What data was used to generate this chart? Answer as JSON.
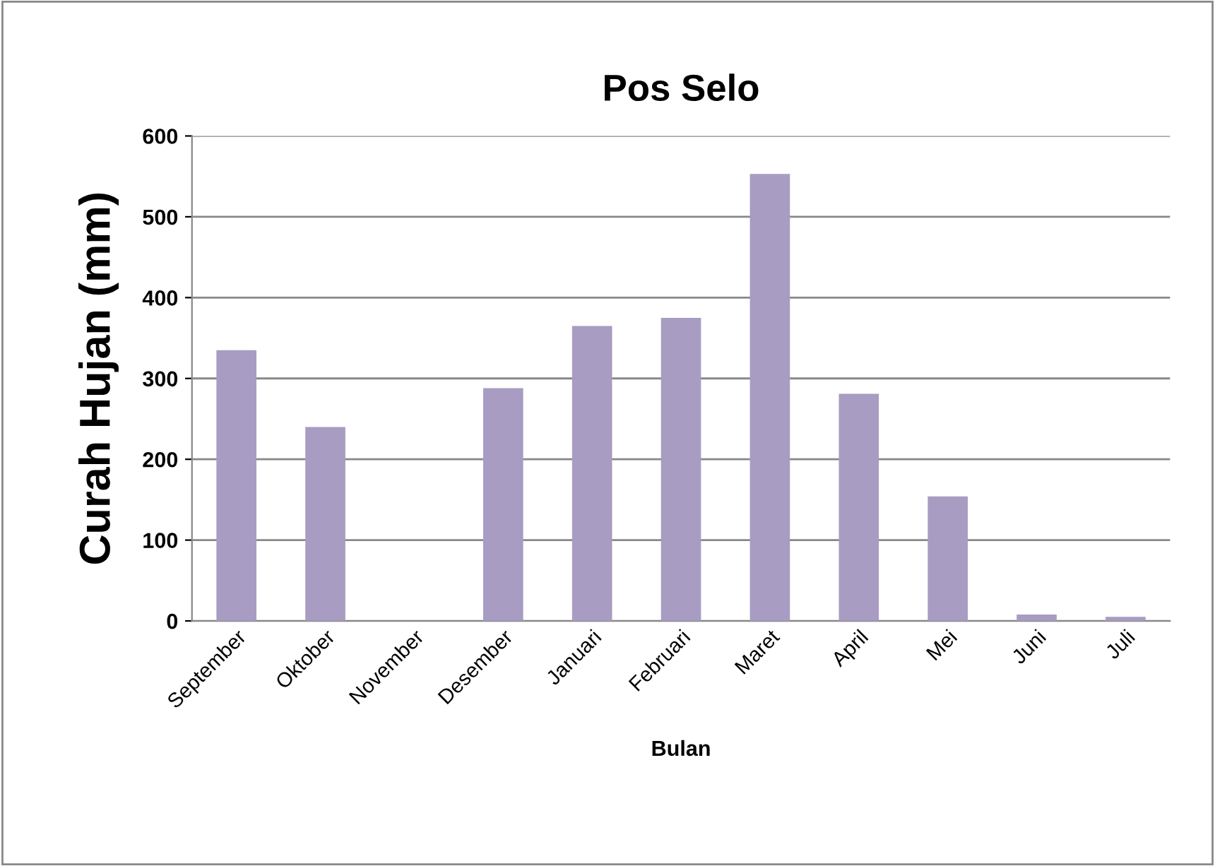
{
  "chart_data": {
    "type": "bar",
    "title": "Pos Selo",
    "xlabel": "Bulan",
    "ylabel": "Curah Hujan (mm)",
    "categories": [
      "September",
      "Oktober",
      "November",
      "Desember",
      "Januari",
      "Februari",
      "Maret",
      "April",
      "Mei",
      "Juni",
      "Juli"
    ],
    "values": [
      335,
      240,
      0,
      288,
      365,
      375,
      553,
      281,
      154,
      8,
      5
    ],
    "color": "#a89cc2",
    "ylim": [
      0,
      600
    ],
    "yticks": [
      0,
      100,
      200,
      300,
      400,
      500,
      600
    ],
    "grid": "y"
  }
}
